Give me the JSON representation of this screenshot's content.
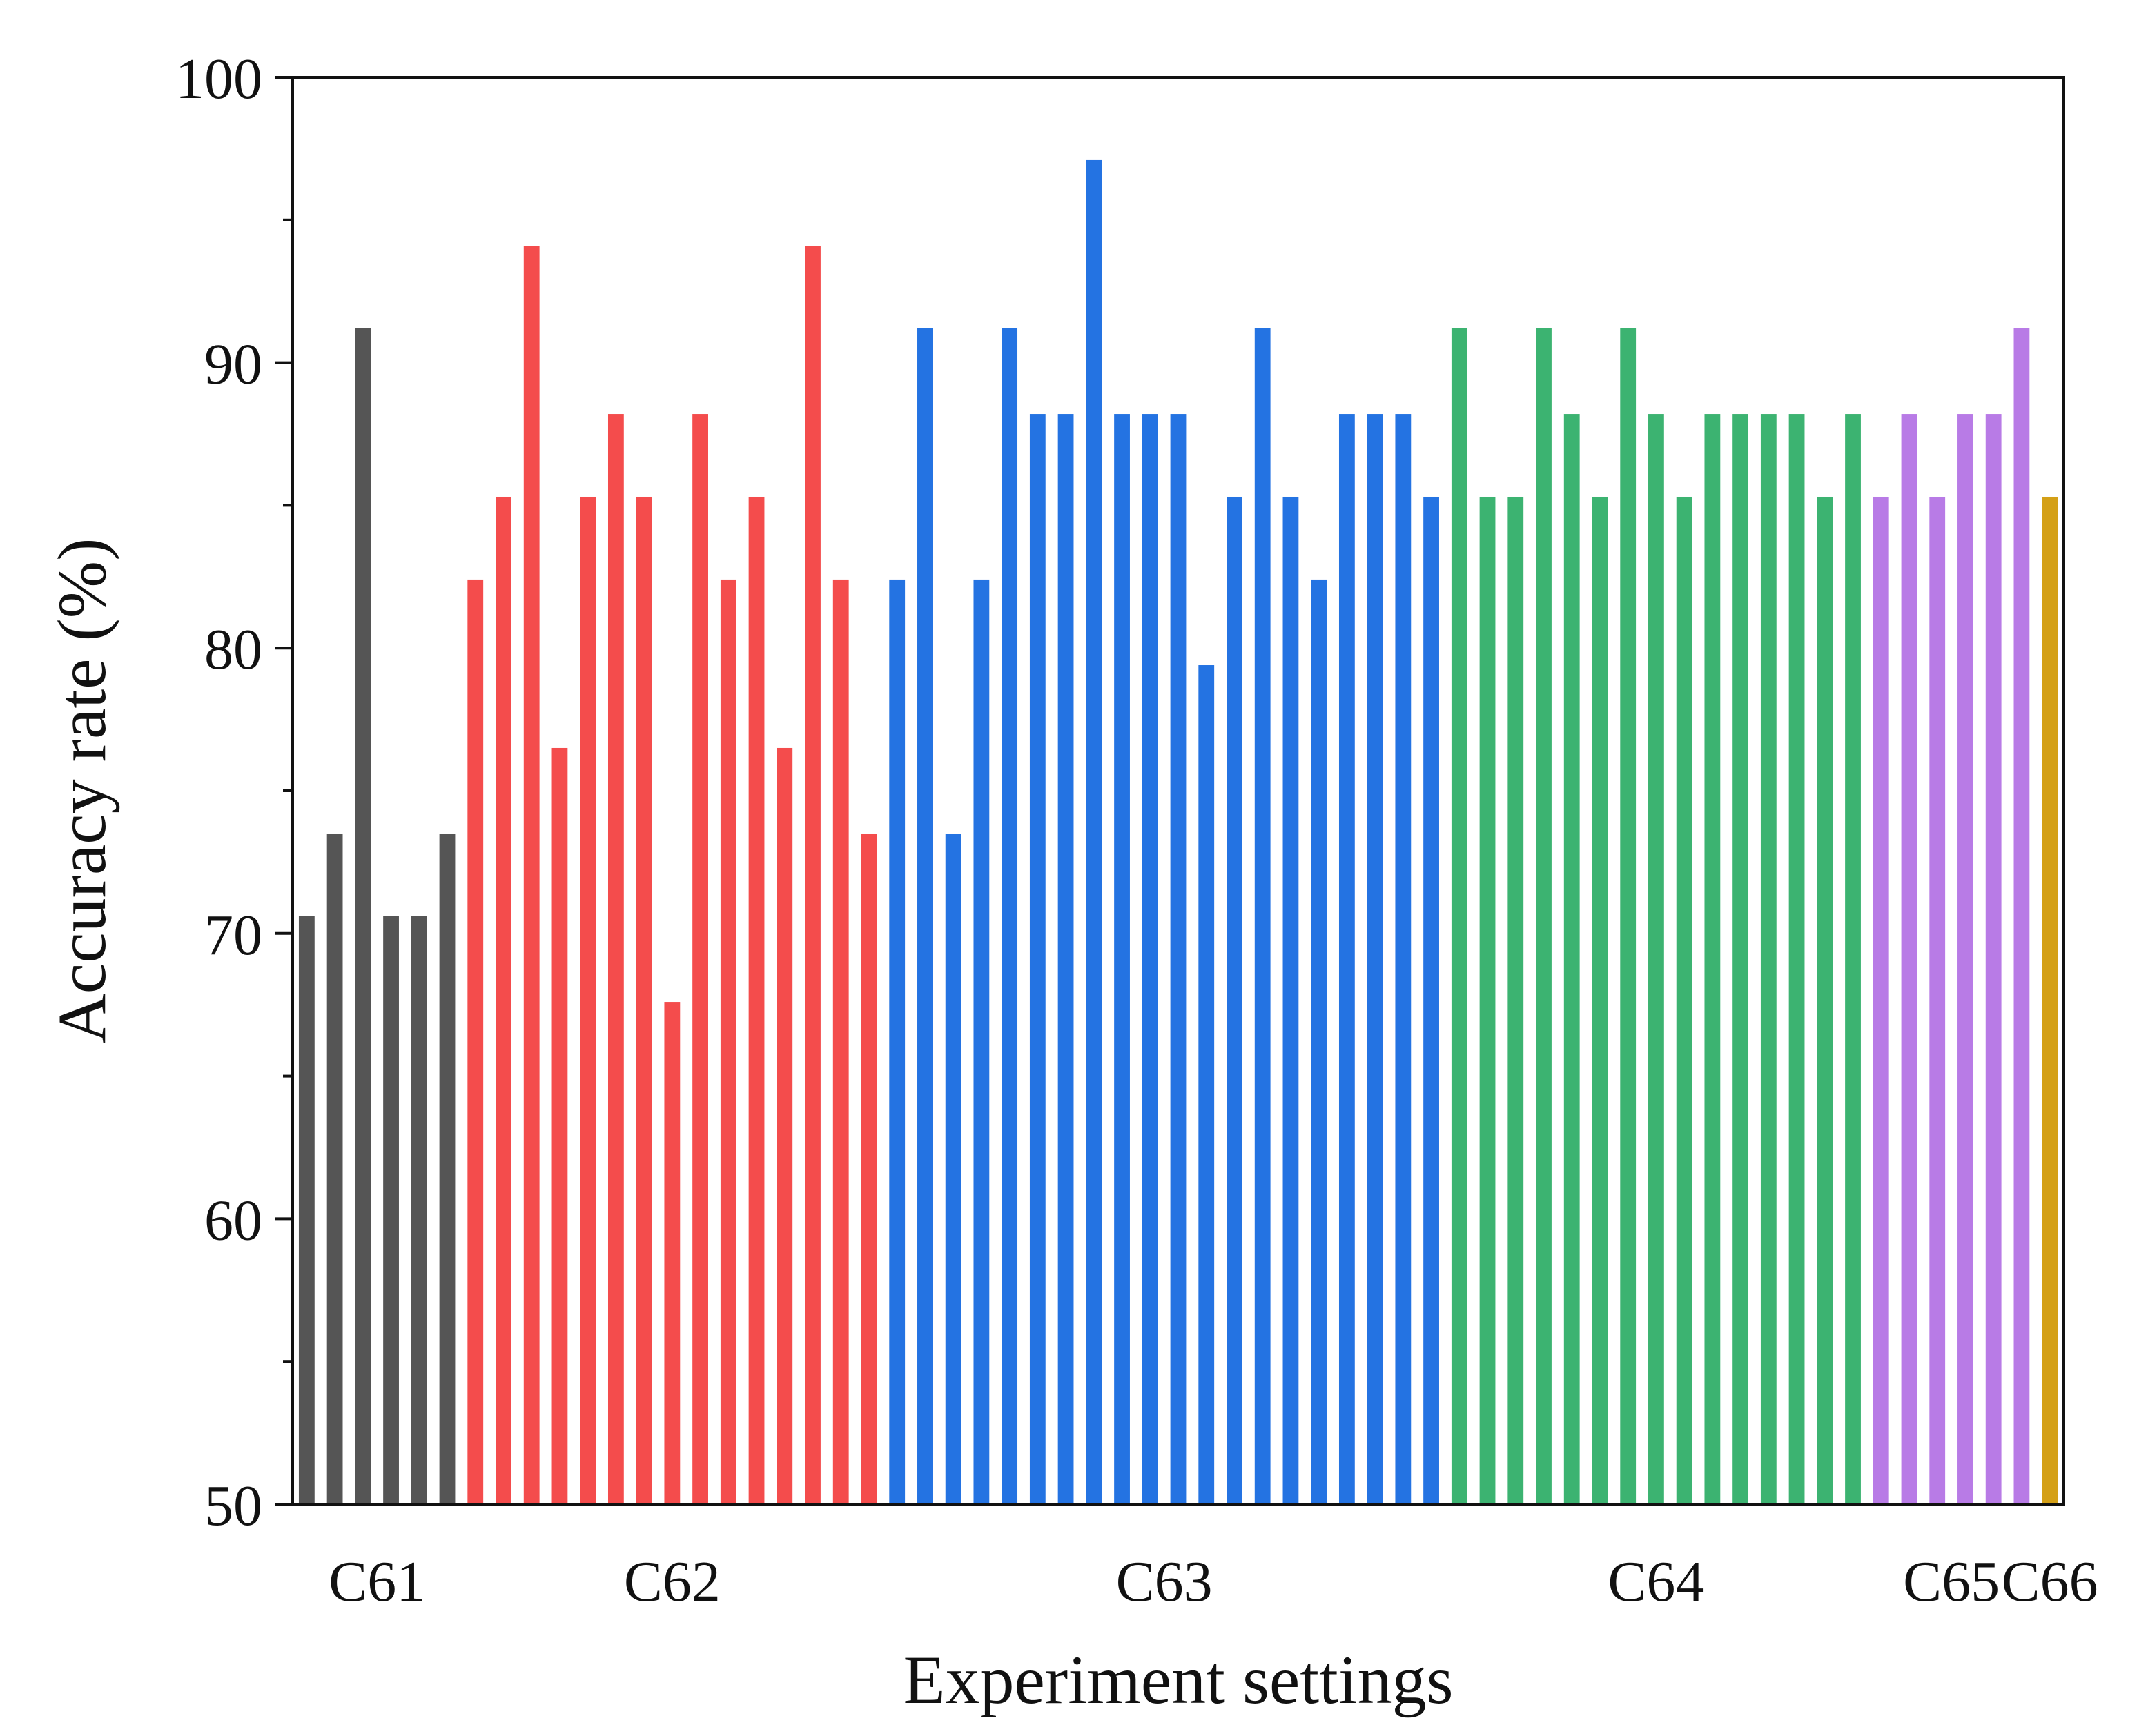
{
  "chart_data": {
    "type": "bar",
    "title": "",
    "xlabel": "Experiment settings",
    "ylabel": "Accuracy rate (%)",
    "ylim": [
      50,
      100
    ],
    "yticks": [
      50,
      60,
      70,
      80,
      90,
      100
    ],
    "grid": false,
    "legend": "none",
    "series": [
      {
        "name": "C61",
        "color": "#555555",
        "values": [
          70.6,
          73.5,
          91.2,
          70.6,
          70.6,
          73.5
        ]
      },
      {
        "name": "C62",
        "color": "#f44c4c",
        "values": [
          82.4,
          85.3,
          94.1,
          76.5,
          85.3,
          88.2,
          85.3,
          67.6,
          88.2,
          82.4,
          85.3,
          76.5,
          94.1,
          82.4,
          73.5
        ]
      },
      {
        "name": "C63",
        "color": "#2473e2",
        "values": [
          82.4,
          91.2,
          73.5,
          82.4,
          91.2,
          88.2,
          88.2,
          97.1,
          88.2,
          88.2,
          88.2,
          79.4,
          85.3,
          91.2,
          85.3,
          82.4,
          88.2,
          88.2,
          88.2,
          85.3
        ]
      },
      {
        "name": "C64",
        "color": "#3cb371",
        "values": [
          91.2,
          85.3,
          85.3,
          91.2,
          88.2,
          85.3,
          91.2,
          88.2,
          85.3,
          88.2,
          88.2,
          88.2,
          88.2,
          85.3,
          88.2
        ]
      },
      {
        "name": "C65",
        "color": "#b87be6",
        "values": [
          85.3,
          88.2,
          85.3,
          88.2,
          88.2,
          91.2
        ]
      },
      {
        "name": "C66",
        "color": "#d4a017",
        "values": [
          85.3
        ]
      }
    ]
  }
}
